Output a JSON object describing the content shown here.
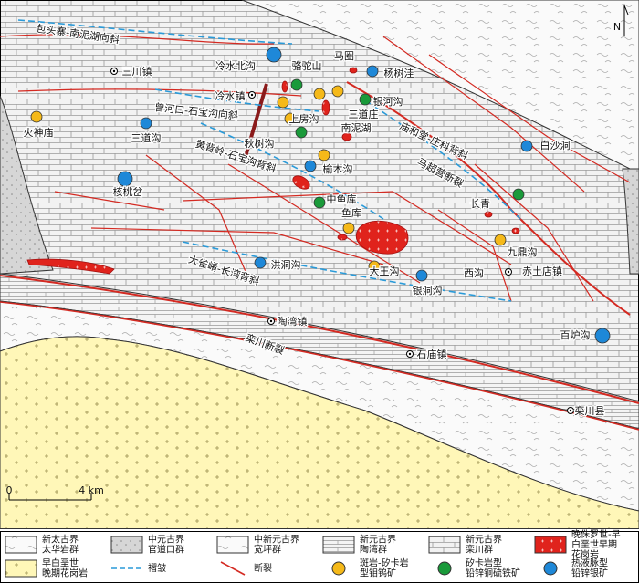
{
  "map_labels": [
    "包头寨-南泥湖向斜",
    "三川镇",
    "冷水北沟",
    "骆驼山",
    "马圈",
    "杨树洼",
    "冷水镇",
    "银河沟",
    "曾河口-石宝沟向斜",
    "上房沟",
    "三道庄",
    "南泥湖",
    "火神庙",
    "三道沟",
    "黄背岭-石宝沟背斜",
    "秋树沟",
    "庙和堂-庄科背斜",
    "白沙洞",
    "马超营断裂",
    "核桃岔",
    "榆木沟",
    "中鱼库",
    "鱼库",
    "长青",
    "九鼎沟",
    "大雀崤-长湾背斜",
    "洪洞沟",
    "西沟",
    "赤土店镇",
    "大王沟",
    "银洞沟",
    "陶湾镇",
    "栾川断裂",
    "百炉沟",
    "石庙镇",
    "栾川县"
  ],
  "scale": {
    "start": "0",
    "end": "4 km"
  },
  "north": "N",
  "legend": [
    {
      "lines": [
        "新太古界",
        "太华岩群"
      ]
    },
    {
      "lines": [
        "中元古界",
        "官道口群"
      ]
    },
    {
      "lines": [
        "中新元古界",
        "宽坪群"
      ]
    },
    {
      "lines": [
        "新元古界",
        "陶湾群"
      ]
    },
    {
      "lines": [
        "新元古界",
        "栾川群"
      ]
    },
    {
      "lines": [
        "晚侏罗世-早",
        "白垩世早期",
        "花岗岩"
      ]
    },
    {
      "lines": [
        "早白垩世",
        "晚期花岗岩"
      ]
    },
    {
      "lines": [
        "褶皱"
      ]
    },
    {
      "lines": [
        "断裂"
      ]
    },
    {
      "lines": [
        "斑岩-矽卡岩",
        "型钼钨矿"
      ]
    },
    {
      "lines": [
        "矽卡岩型",
        "铅锌铜硫铁矿"
      ]
    },
    {
      "lines": [
        "热液脉型",
        "铅锌银矿"
      ]
    }
  ]
}
